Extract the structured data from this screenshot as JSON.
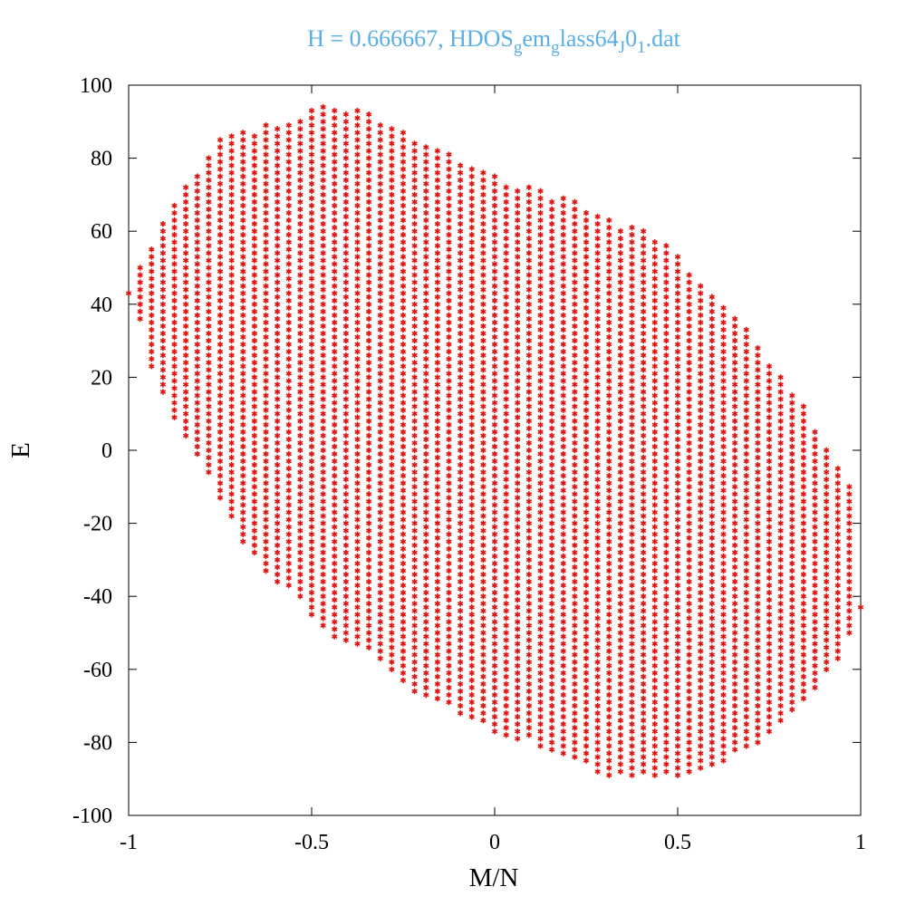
{
  "chart_data": {
    "type": "scatter",
    "title": "H = 0.666667, HDOS",
    "title_subscripts": [
      {
        "sub": "g",
        "after": "em"
      },
      {
        "sub": "g",
        "after": "lass64"
      },
      {
        "sub": "J",
        "after": "0"
      },
      {
        "sub": "1",
        "after": ".dat"
      }
    ],
    "title_parts": [
      {
        "text": "H = 0.666667, HDOS",
        "sub": false
      },
      {
        "text": "g",
        "sub": true
      },
      {
        "text": "em",
        "sub": false
      },
      {
        "text": "g",
        "sub": true
      },
      {
        "text": "lass64",
        "sub": false
      },
      {
        "text": "J",
        "sub": true
      },
      {
        "text": "0",
        "sub": false
      },
      {
        "text": "1",
        "sub": true
      },
      {
        "text": ".dat",
        "sub": false
      }
    ],
    "title_color": "#5aaee6",
    "point_color": "#e0140f",
    "xlabel": "M/N",
    "ylabel": "E",
    "xlim": [
      -1,
      1
    ],
    "ylim": [
      -100,
      100
    ],
    "x_ticks": [
      "-1",
      "-0.5",
      "0",
      "0.5",
      "1"
    ],
    "y_ticks": [
      "100",
      "80",
      "60",
      "40",
      "20",
      "0",
      "-20",
      "-40",
      "-60",
      "-80",
      "-100"
    ],
    "grid": false,
    "legend": "none",
    "marker": "star",
    "n_columns": 65,
    "m_step": 0.03125,
    "e_step": 2,
    "envelope_upper": [
      [
        -1.0,
        43
      ],
      [
        -0.97,
        50
      ],
      [
        -0.94,
        56
      ],
      [
        -0.91,
        63
      ],
      [
        -0.875,
        67
      ],
      [
        -0.84,
        74
      ],
      [
        -0.81,
        77
      ],
      [
        -0.78,
        82
      ],
      [
        -0.75,
        85
      ],
      [
        -0.72,
        86
      ],
      [
        -0.69,
        87
      ],
      [
        -0.656,
        88
      ],
      [
        -0.625,
        89
      ],
      [
        -0.594,
        89
      ],
      [
        -0.562,
        90
      ],
      [
        -0.531,
        91
      ],
      [
        -0.5,
        93
      ],
      [
        -0.469,
        94
      ],
      [
        -0.44,
        95
      ],
      [
        -0.41,
        94
      ],
      [
        -0.375,
        93
      ],
      [
        -0.34,
        92
      ],
      [
        -0.31,
        90
      ],
      [
        -0.28,
        89
      ],
      [
        -0.25,
        87
      ],
      [
        -0.22,
        85
      ],
      [
        -0.19,
        84
      ],
      [
        -0.156,
        82
      ],
      [
        -0.125,
        81
      ],
      [
        -0.094,
        79
      ],
      [
        -0.062,
        78
      ],
      [
        -0.031,
        77
      ],
      [
        0.0,
        75
      ],
      [
        0.03,
        74
      ],
      [
        0.06,
        73
      ],
      [
        0.094,
        72
      ],
      [
        0.125,
        71
      ],
      [
        0.156,
        70
      ],
      [
        0.19,
        69
      ],
      [
        0.22,
        68
      ],
      [
        0.25,
        66
      ],
      [
        0.28,
        65
      ],
      [
        0.31,
        64
      ],
      [
        0.34,
        62
      ],
      [
        0.375,
        61
      ],
      [
        0.41,
        60
      ],
      [
        0.44,
        58
      ],
      [
        0.47,
        56
      ],
      [
        0.5,
        53
      ],
      [
        0.53,
        49
      ],
      [
        0.56,
        46
      ],
      [
        0.59,
        43
      ],
      [
        0.625,
        40
      ],
      [
        0.656,
        37
      ],
      [
        0.69,
        33
      ],
      [
        0.72,
        29
      ],
      [
        0.75,
        23
      ],
      [
        0.78,
        21
      ],
      [
        0.81,
        17
      ],
      [
        0.84,
        13
      ],
      [
        0.875,
        6
      ],
      [
        0.906,
        1
      ],
      [
        0.94,
        -5
      ],
      [
        0.97,
        -9
      ],
      [
        1.0,
        -43
      ]
    ],
    "envelope_lower": [
      [
        -1.0,
        43
      ],
      [
        -0.97,
        35
      ],
      [
        -0.94,
        23
      ],
      [
        -0.91,
        15
      ],
      [
        -0.875,
        9
      ],
      [
        -0.84,
        3
      ],
      [
        -0.81,
        -2
      ],
      [
        -0.78,
        -8
      ],
      [
        -0.75,
        -13
      ],
      [
        -0.72,
        -19
      ],
      [
        -0.69,
        -25
      ],
      [
        -0.656,
        -30
      ],
      [
        -0.625,
        -33
      ],
      [
        -0.594,
        -36
      ],
      [
        -0.562,
        -39
      ],
      [
        -0.531,
        -42
      ],
      [
        -0.5,
        -46
      ],
      [
        -0.469,
        -49
      ],
      [
        -0.44,
        -51
      ],
      [
        -0.41,
        -53
      ],
      [
        -0.375,
        -54
      ],
      [
        -0.34,
        -56
      ],
      [
        -0.31,
        -59
      ],
      [
        -0.28,
        -62
      ],
      [
        -0.25,
        -64
      ],
      [
        -0.22,
        -66
      ],
      [
        -0.19,
        -67
      ],
      [
        -0.156,
        -69
      ],
      [
        -0.125,
        -70
      ],
      [
        -0.094,
        -72
      ],
      [
        -0.062,
        -74
      ],
      [
        -0.031,
        -75
      ],
      [
        0.0,
        -77
      ],
      [
        0.03,
        -78
      ],
      [
        0.06,
        -79
      ],
      [
        0.094,
        -80
      ],
      [
        0.125,
        -81
      ],
      [
        0.156,
        -82
      ],
      [
        0.19,
        -84
      ],
      [
        0.22,
        -85
      ],
      [
        0.25,
        -86
      ],
      [
        0.28,
        -88
      ],
      [
        0.31,
        -89
      ],
      [
        0.34,
        -89
      ],
      [
        0.375,
        -89
      ],
      [
        0.41,
        -89
      ],
      [
        0.44,
        -89
      ],
      [
        0.47,
        -89
      ],
      [
        0.5,
        -89
      ],
      [
        0.53,
        -88
      ],
      [
        0.56,
        -88
      ],
      [
        0.59,
        -87
      ],
      [
        0.625,
        -85
      ],
      [
        0.656,
        -84
      ],
      [
        0.69,
        -82
      ],
      [
        0.72,
        -80
      ],
      [
        0.75,
        -78
      ],
      [
        0.78,
        -76
      ],
      [
        0.81,
        -73
      ],
      [
        0.84,
        -70
      ],
      [
        0.875,
        -66
      ],
      [
        0.906,
        -62
      ],
      [
        0.94,
        -57
      ],
      [
        0.97,
        -50
      ],
      [
        1.0,
        -43
      ]
    ]
  }
}
